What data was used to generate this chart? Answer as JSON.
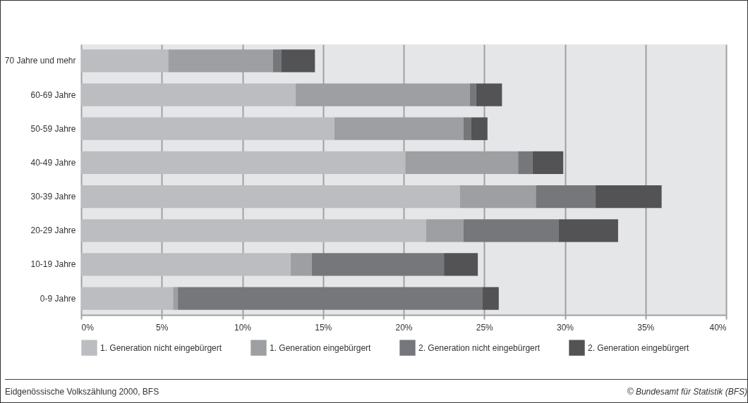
{
  "chart_data": {
    "type": "bar",
    "orientation": "horizontal",
    "stacked": true,
    "grid": "x",
    "legend": "bottom",
    "categories": [
      "70 Jahre und mehr",
      "60-69 Jahre",
      "50-59 Jahre",
      "40-49 Jahre",
      "30-39 Jahre",
      "20-29 Jahre",
      "10-19 Jahre",
      "0-9 Jahre"
    ],
    "series": [
      {
        "name": "1. Generation nicht eingebürgert",
        "color": "#bcbdc1",
        "values": [
          5.4,
          13.3,
          15.7,
          20.1,
          23.5,
          21.4,
          13.0,
          5.7
        ]
      },
      {
        "name": "1. Generation eingebürgert",
        "color": "#9e9fa3",
        "values": [
          6.5,
          10.8,
          8.0,
          7.0,
          4.7,
          2.3,
          1.3,
          0.3
        ]
      },
      {
        "name": "2. Generation nicht eingebürgert",
        "color": "#76777b",
        "values": [
          0.5,
          0.4,
          0.5,
          0.9,
          3.7,
          5.9,
          8.2,
          18.9
        ]
      },
      {
        "name": "2. Generation eingebürgert",
        "color": "#535355",
        "values": [
          2.1,
          1.6,
          1.0,
          1.9,
          4.1,
          3.7,
          2.1,
          1.0
        ]
      }
    ],
    "xlim": [
      0,
      40
    ],
    "xticks": [
      {
        "value": 0,
        "label": "0%"
      },
      {
        "value": 5,
        "label": "5%"
      },
      {
        "value": 10,
        "label": "10%"
      },
      {
        "value": 15,
        "label": "15%"
      },
      {
        "value": 20,
        "label": "20%"
      },
      {
        "value": 25,
        "label": "25%"
      },
      {
        "value": 30,
        "label": "30%"
      },
      {
        "value": 35,
        "label": "35%"
      },
      {
        "value": 40,
        "label": "40%"
      }
    ],
    "annotations": [
      "Eidgenössische Volkszählung 2000, BFS",
      "© Bundesamt für Statistik (BFS)"
    ]
  }
}
